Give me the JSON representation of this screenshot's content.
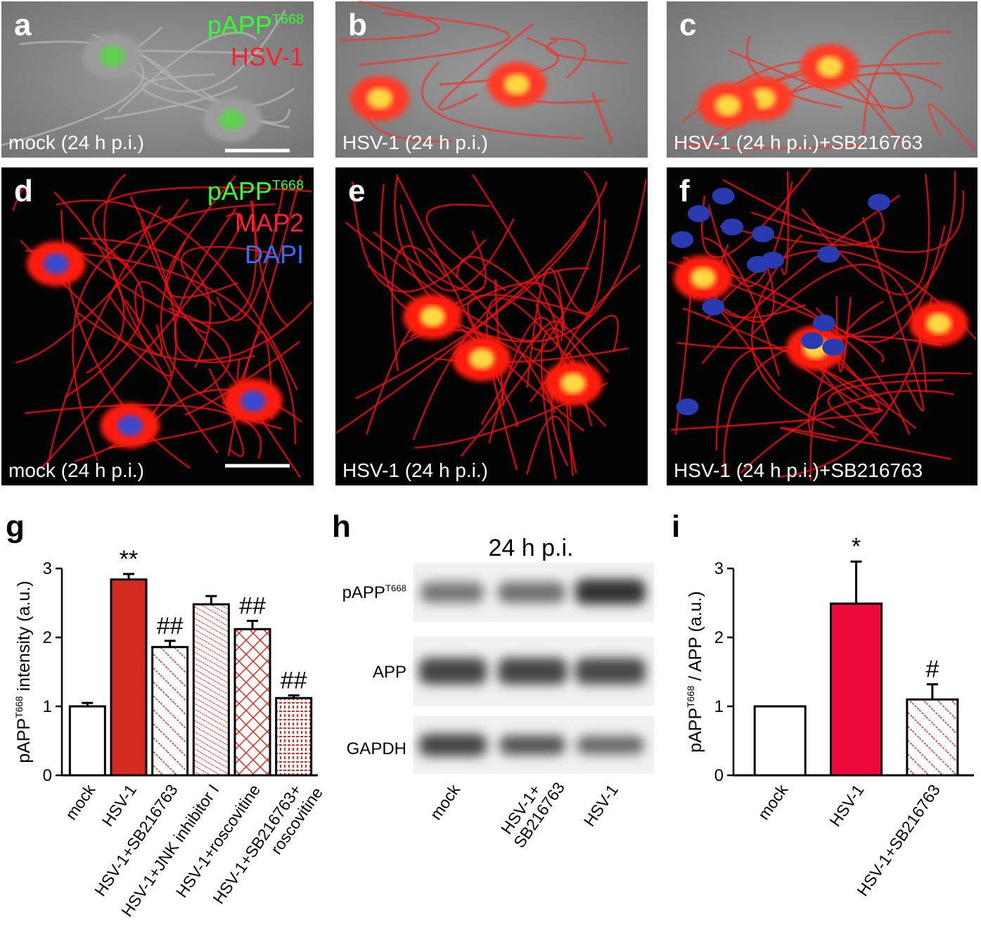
{
  "panels": [
    {
      "letter": "a",
      "caption": "mock (24 h p.i.)",
      "legend": [
        [
          {
            "text": "pAPP",
            "color": "#33ff33"
          },
          {
            "text": "T668",
            "color": "#33ff33",
            "sup": true
          }
        ],
        [
          {
            "text": "HSV-1",
            "color": "#ff2030"
          }
        ]
      ]
    },
    {
      "letter": "b",
      "caption": "HSV-1 (24 h p.i.)"
    },
    {
      "letter": "c",
      "caption": "HSV-1 (24 h p.i.)+SB216763"
    },
    {
      "letter": "d",
      "caption": "mock (24 h p.i.)",
      "legend": [
        [
          {
            "text": "pAPP",
            "color": "#33ff33"
          },
          {
            "text": "T668",
            "color": "#33ff33",
            "sup": true
          }
        ],
        [
          {
            "text": "MAP2",
            "color": "#ff2030"
          }
        ],
        [
          {
            "text": "DAPI",
            "color": "#3a6cff"
          }
        ]
      ]
    },
    {
      "letter": "e",
      "caption": "HSV-1 (24 h p.i.)"
    },
    {
      "letter": "f",
      "caption": "HSV-1 (24 h p.i.)+SB216763"
    }
  ],
  "blot": {
    "letter": "h",
    "title": "24 h p.i.",
    "rows": [
      [
        {
          "text": "pAPP"
        },
        {
          "text": "T668",
          "sup": true
        }
      ],
      [
        {
          "text": "APP"
        }
      ],
      [
        {
          "text": "GAPDH"
        }
      ]
    ],
    "lanes": [
      [
        "mock"
      ],
      [
        "HSV-1+",
        "SB216763"
      ],
      [
        "HSV-1"
      ]
    ]
  },
  "chart_data": [
    {
      "type": "bar",
      "letter": "g",
      "ylabel": [
        {
          "text": "pAPP"
        },
        {
          "text": "T668",
          "sup": true
        },
        {
          "text": "  intensity (a.u.)"
        }
      ],
      "categories": [
        [
          "mock"
        ],
        [
          "HSV-1"
        ],
        [
          "HSV-1+SB216763"
        ],
        [
          "HSV-1+JNK inhibitor I"
        ],
        [
          "HSV-1+roscovitine"
        ],
        [
          "HSV-1+SB216763+",
          "roscovitine"
        ]
      ],
      "values": [
        1.0,
        2.84,
        1.86,
        2.48,
        2.12,
        1.12
      ],
      "errors": [
        0.05,
        0.08,
        0.09,
        0.12,
        0.12,
        0.04
      ],
      "colors": [
        "#ffffff",
        "#d42a20",
        "#ffffff",
        "#ffffff",
        "#ffffff",
        "#ffffff"
      ],
      "hatch": [
        null,
        null,
        "diagonal",
        "dense",
        "cross",
        "grid"
      ],
      "annotations": [
        null,
        "**",
        "##",
        null,
        "##",
        "##"
      ],
      "ylim": [
        0,
        3
      ],
      "yticks": [
        0,
        1,
        2,
        3
      ]
    },
    {
      "type": "bar",
      "letter": "i",
      "ylabel": [
        {
          "text": "pAPP"
        },
        {
          "text": "T668",
          "sup": true
        },
        {
          "text": " / APP  (a.u.)"
        }
      ],
      "categories": [
        [
          "mock"
        ],
        [
          "HSV-1"
        ],
        [
          "HSV-1+SB216763"
        ]
      ],
      "values": [
        1.0,
        2.49,
        1.1
      ],
      "errors": [
        0,
        0.61,
        0.22
      ],
      "colors": [
        "#ffffff",
        "#ee0a3a",
        "#ffffff"
      ],
      "hatch": [
        null,
        null,
        "diagonal"
      ],
      "annotations": [
        null,
        "*",
        "#"
      ],
      "ylim": [
        0,
        3
      ],
      "yticks": [
        0,
        1,
        2,
        3
      ]
    }
  ]
}
